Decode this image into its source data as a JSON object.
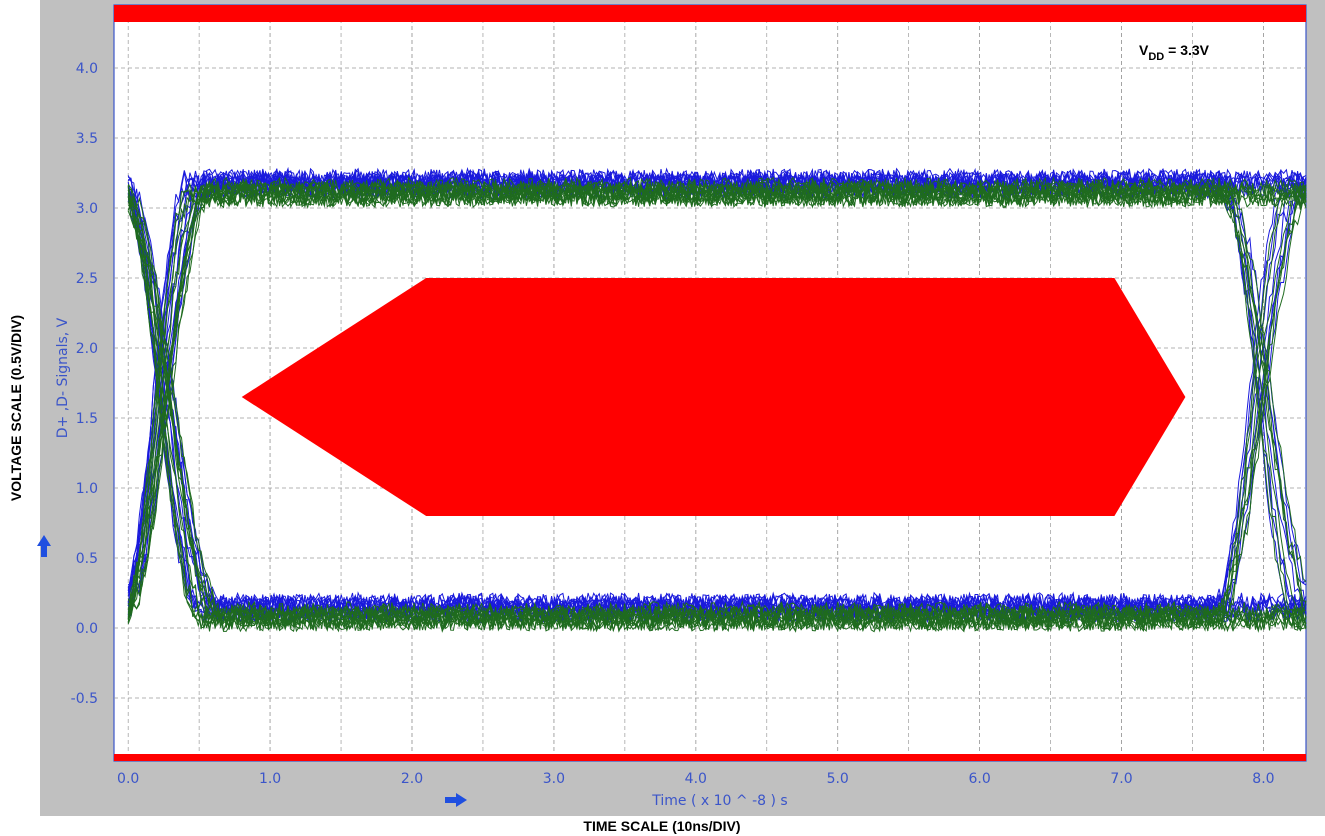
{
  "chart_data": {
    "type": "line",
    "title": "",
    "annotation": {
      "main": "V",
      "sub": "DD",
      "rest": " = 3.3V"
    },
    "xlabel": "Time  ( x 10 ^ -8 ) s",
    "ylabel": "D+ ,D- Signals, V",
    "outer_xlabel": "TIME SCALE (10ns/DIV)",
    "outer_ylabel": "VOLTAGE SCALE (0.5V/DIV)",
    "x_ticks": [
      "0.0",
      "1.0",
      "2.0",
      "3.0",
      "4.0",
      "5.0",
      "6.0",
      "7.0",
      "8.0"
    ],
    "y_ticks": [
      "4.0",
      "3.5",
      "3.0",
      "2.5",
      "2.0",
      "1.5",
      "1.0",
      "0.5",
      "0.0",
      "-0.5"
    ],
    "xlim": [
      -0.1,
      8.3
    ],
    "ylim": [
      -0.95,
      4.45
    ],
    "grid": true,
    "mask": {
      "center": [
        [
          0.8,
          1.65
        ],
        [
          2.1,
          2.5
        ],
        [
          6.95,
          2.5
        ],
        [
          7.45,
          1.65
        ],
        [
          6.95,
          0.8
        ],
        [
          2.1,
          0.8
        ]
      ],
      "upper_limit": 4.4,
      "lower_limit": -0.9
    },
    "eye": {
      "high_level": 3.15,
      "low_level": 0.12,
      "crossing_voltage": 1.65,
      "crossings": [
        0.0,
        8.25
      ]
    },
    "series": [
      {
        "color": "#1a1adc",
        "values": []
      },
      {
        "color": "#1f6b1f",
        "values": []
      }
    ],
    "colors": {
      "mask": "#ff0000",
      "grid": "#9a9a9a",
      "axes": "#3b55c9",
      "panel": "#c0c0c0"
    }
  }
}
